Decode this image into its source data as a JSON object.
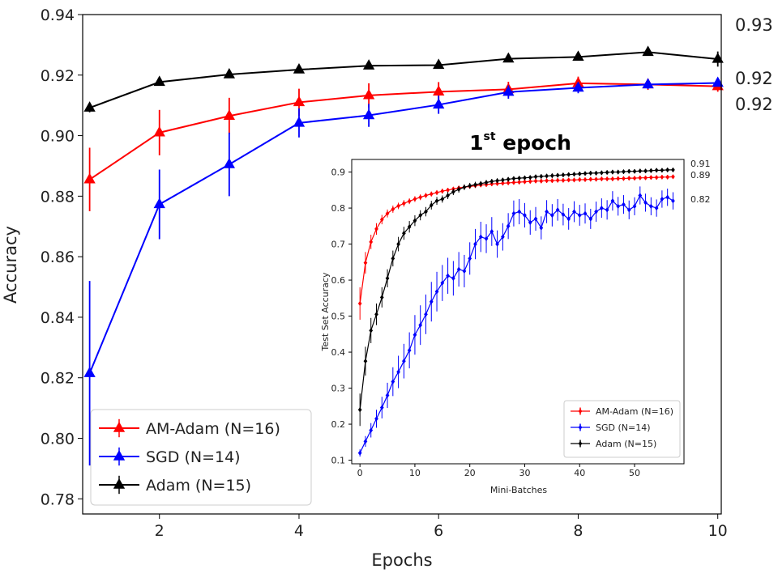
{
  "chart_data": [
    {
      "type": "line",
      "xlabel": "Epochs",
      "ylabel": "Accuracy",
      "xlim": [
        0.9,
        10.05
      ],
      "ylim": [
        0.775,
        0.94
      ],
      "xticks": [
        2,
        4,
        6,
        8,
        10
      ],
      "yticks": [
        0.78,
        0.8,
        0.82,
        0.84,
        0.86,
        0.88,
        0.9,
        0.92,
        0.94
      ],
      "x": [
        1,
        2,
        3,
        4,
        5,
        6,
        7,
        8,
        9,
        10
      ],
      "legend_position": "lower-left",
      "end_labels": [
        "0.93",
        "0.92",
        "0.92"
      ],
      "series": [
        {
          "name": "AM-Adam (N=16)",
          "color": "#ff0000",
          "marker": "triangle",
          "values": [
            0.8855,
            0.901,
            0.9065,
            0.911,
            0.9133,
            0.9145,
            0.9153,
            0.9173,
            0.9169,
            0.9163
          ],
          "errors": [
            0.0105,
            0.0075,
            0.006,
            0.0045,
            0.004,
            0.0032,
            0.0025,
            0.0022,
            0.0018,
            0.0018
          ]
        },
        {
          "name": "SGD (N=14)",
          "color": "#0000ff",
          "marker": "triangle",
          "values": [
            0.8215,
            0.8773,
            0.8905,
            0.9042,
            0.9067,
            0.9102,
            0.9144,
            0.9158,
            0.9169,
            0.9174
          ],
          "errors": [
            0.0305,
            0.0115,
            0.0105,
            0.0048,
            0.0038,
            0.003,
            0.0022,
            0.0018,
            0.0015,
            0.0012
          ]
        },
        {
          "name": "Adam (N=15)",
          "color": "#000000",
          "marker": "triangle",
          "values": [
            0.9092,
            0.9177,
            0.9202,
            0.9218,
            0.9231,
            0.9233,
            0.9254,
            0.926,
            0.9276,
            0.9253
          ],
          "errors": [
            0.0015,
            0.0012,
            0.001,
            0.001,
            0.001,
            0.001,
            0.001,
            0.001,
            0.0012,
            0.0025
          ]
        }
      ]
    },
    {
      "type": "line",
      "title_main": "1",
      "title_sup": "st",
      "title_rest": " epoch",
      "xlabel": "Mini-Batches",
      "ylabel": "Test Set Accuracy",
      "xlim": [
        -1.5,
        59
      ],
      "ylim": [
        0.09,
        0.935
      ],
      "xticks": [
        0,
        10,
        20,
        30,
        40,
        50
      ],
      "yticks": [
        0.1,
        0.2,
        0.3,
        0.4,
        0.5,
        0.6,
        0.7,
        0.8,
        0.9
      ],
      "legend_position": "lower-right",
      "end_labels": [
        "0.91",
        "0.89",
        "0.82"
      ],
      "series": [
        {
          "name": "AM-Adam (N=16)",
          "color": "#ff0000",
          "marker": "diamond",
          "x": [
            0,
            1,
            2,
            3,
            4,
            5,
            6,
            7,
            8,
            9,
            10,
            11,
            12,
            13,
            14,
            15,
            16,
            17,
            18,
            19,
            20,
            21,
            22,
            23,
            24,
            25,
            26,
            27,
            28,
            29,
            30,
            31,
            32,
            33,
            34,
            35,
            36,
            37,
            38,
            39,
            40,
            41,
            42,
            43,
            44,
            45,
            46,
            47,
            48,
            49,
            50,
            51,
            52,
            53,
            54,
            55,
            56,
            57
          ],
          "values": [
            0.535,
            0.648,
            0.706,
            0.742,
            0.768,
            0.785,
            0.797,
            0.806,
            0.813,
            0.819,
            0.825,
            0.83,
            0.835,
            0.839,
            0.843,
            0.847,
            0.85,
            0.853,
            0.856,
            0.858,
            0.86,
            0.862,
            0.864,
            0.865,
            0.867,
            0.868,
            0.869,
            0.87,
            0.871,
            0.872,
            0.873,
            0.874,
            0.875,
            0.875,
            0.876,
            0.876,
            0.877,
            0.877,
            0.878,
            0.878,
            0.879,
            0.879,
            0.88,
            0.88,
            0.881,
            0.881,
            0.881,
            0.882,
            0.882,
            0.883,
            0.883,
            0.884,
            0.884,
            0.885,
            0.885,
            0.886,
            0.886,
            0.887
          ],
          "errors": [
            0.045,
            0.03,
            0.02,
            0.016,
            0.013,
            0.011,
            0.01,
            0.009,
            0.009,
            0.008,
            0.008,
            0.008,
            0.007,
            0.007,
            0.007,
            0.007,
            0.006,
            0.006,
            0.006,
            0.006,
            0.006,
            0.006,
            0.006,
            0.006,
            0.006,
            0.006,
            0.006,
            0.006,
            0.006,
            0.006,
            0.006,
            0.006,
            0.006,
            0.006,
            0.006,
            0.006,
            0.006,
            0.006,
            0.006,
            0.006,
            0.006,
            0.006,
            0.006,
            0.006,
            0.006,
            0.006,
            0.006,
            0.006,
            0.006,
            0.006,
            0.006,
            0.006,
            0.006,
            0.006,
            0.006,
            0.006,
            0.006,
            0.006
          ]
        },
        {
          "name": "SGD (N=14)",
          "color": "#0000ff",
          "marker": "diamond",
          "x": [
            0,
            1,
            2,
            3,
            4,
            5,
            6,
            7,
            8,
            9,
            10,
            11,
            12,
            13,
            14,
            15,
            16,
            17,
            18,
            19,
            20,
            21,
            22,
            23,
            24,
            25,
            26,
            27,
            28,
            29,
            30,
            31,
            32,
            33,
            34,
            35,
            36,
            37,
            38,
            39,
            40,
            41,
            42,
            43,
            44,
            45,
            46,
            47,
            48,
            49,
            50,
            51,
            52,
            53,
            54,
            55,
            56,
            57
          ],
          "values": [
            0.12,
            0.152,
            0.183,
            0.215,
            0.246,
            0.28,
            0.318,
            0.345,
            0.375,
            0.405,
            0.448,
            0.475,
            0.505,
            0.54,
            0.568,
            0.592,
            0.612,
            0.605,
            0.63,
            0.625,
            0.66,
            0.7,
            0.72,
            0.715,
            0.735,
            0.7,
            0.72,
            0.75,
            0.785,
            0.79,
            0.78,
            0.76,
            0.77,
            0.745,
            0.79,
            0.78,
            0.795,
            0.782,
            0.77,
            0.79,
            0.78,
            0.785,
            0.77,
            0.79,
            0.8,
            0.795,
            0.82,
            0.805,
            0.81,
            0.795,
            0.805,
            0.835,
            0.815,
            0.805,
            0.8,
            0.825,
            0.83,
            0.82
          ],
          "errors": [
            0.01,
            0.015,
            0.02,
            0.025,
            0.03,
            0.035,
            0.04,
            0.045,
            0.048,
            0.05,
            0.055,
            0.055,
            0.055,
            0.055,
            0.055,
            0.05,
            0.05,
            0.048,
            0.048,
            0.045,
            0.045,
            0.042,
            0.042,
            0.04,
            0.04,
            0.038,
            0.038,
            0.036,
            0.036,
            0.035,
            0.034,
            0.034,
            0.033,
            0.032,
            0.032,
            0.031,
            0.03,
            0.03,
            0.03,
            0.029,
            0.029,
            0.028,
            0.028,
            0.028,
            0.027,
            0.027,
            0.027,
            0.026,
            0.026,
            0.026,
            0.025,
            0.025,
            0.025,
            0.025,
            0.024,
            0.024,
            0.024,
            0.024
          ]
        },
        {
          "name": "Adam (N=15)",
          "color": "#000000",
          "marker": "diamond",
          "x": [
            0,
            1,
            2,
            3,
            4,
            5,
            6,
            7,
            8,
            9,
            10,
            11,
            12,
            13,
            14,
            15,
            16,
            17,
            18,
            19,
            20,
            21,
            22,
            23,
            24,
            25,
            26,
            27,
            28,
            29,
            30,
            31,
            32,
            33,
            34,
            35,
            36,
            37,
            38,
            39,
            40,
            41,
            42,
            43,
            44,
            45,
            46,
            47,
            48,
            49,
            50,
            51,
            52,
            53,
            54,
            55,
            56,
            57
          ],
          "values": [
            0.24,
            0.375,
            0.46,
            0.505,
            0.552,
            0.605,
            0.66,
            0.7,
            0.73,
            0.748,
            0.765,
            0.78,
            0.79,
            0.808,
            0.82,
            0.825,
            0.835,
            0.845,
            0.852,
            0.858,
            0.862,
            0.865,
            0.868,
            0.871,
            0.874,
            0.876,
            0.878,
            0.88,
            0.882,
            0.883,
            0.884,
            0.885,
            0.887,
            0.888,
            0.889,
            0.89,
            0.891,
            0.892,
            0.893,
            0.894,
            0.895,
            0.896,
            0.897,
            0.897,
            0.898,
            0.899,
            0.9,
            0.9,
            0.901,
            0.902,
            0.902,
            0.903,
            0.903,
            0.904,
            0.905,
            0.905,
            0.906,
            0.906
          ],
          "errors": [
            0.045,
            0.04,
            0.035,
            0.03,
            0.028,
            0.025,
            0.022,
            0.02,
            0.018,
            0.016,
            0.015,
            0.014,
            0.013,
            0.012,
            0.011,
            0.01,
            0.01,
            0.009,
            0.009,
            0.008,
            0.008,
            0.008,
            0.007,
            0.007,
            0.007,
            0.007,
            0.006,
            0.006,
            0.006,
            0.006,
            0.006,
            0.006,
            0.006,
            0.006,
            0.006,
            0.006,
            0.006,
            0.006,
            0.006,
            0.006,
            0.006,
            0.006,
            0.006,
            0.006,
            0.006,
            0.006,
            0.006,
            0.006,
            0.006,
            0.006,
            0.006,
            0.006,
            0.006,
            0.006,
            0.006,
            0.006,
            0.006,
            0.006
          ]
        }
      ]
    }
  ]
}
